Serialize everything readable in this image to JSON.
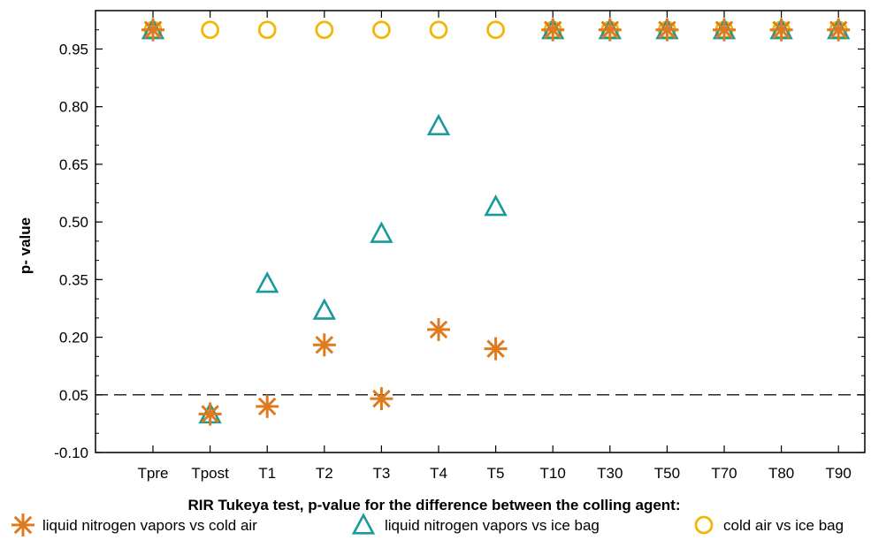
{
  "chart_data": {
    "type": "scatter",
    "title": "",
    "xlabel": "RIR Tukeya test, p-value for the difference between the colling agent:",
    "ylabel": "p- value",
    "categories": [
      "Tpre",
      "Tpost",
      "T1",
      "T2",
      "T3",
      "T4",
      "T5",
      "T10",
      "T30",
      "T50",
      "T70",
      "T80",
      "T90"
    ],
    "ylim": [
      -0.1,
      1.05
    ],
    "yticks": [
      -0.1,
      0.05,
      0.2,
      0.35,
      0.5,
      0.65,
      0.8,
      0.95
    ],
    "ytick_labels": [
      "-0.10",
      "0.05",
      "0.20",
      "0.35",
      "0.50",
      "0.65",
      "0.80",
      "0.95"
    ],
    "reference_line": {
      "y": 0.05,
      "style": "dashed"
    },
    "grid": false,
    "legend_position": "bottom",
    "series": [
      {
        "name": "liquid nitrogen vapors vs cold air",
        "marker": "asterisk",
        "color": "#E07A1F",
        "values": [
          1.0,
          0.0,
          0.02,
          0.18,
          0.04,
          0.22,
          0.17,
          1.0,
          1.0,
          1.0,
          1.0,
          1.0,
          1.0
        ]
      },
      {
        "name": "liquid nitrogen vapors vs ice bag",
        "marker": "triangle",
        "color": "#1A9A9A",
        "values": [
          1.0,
          0.0,
          0.34,
          0.27,
          0.47,
          0.75,
          0.54,
          1.0,
          1.0,
          1.0,
          1.0,
          1.0,
          1.0
        ]
      },
      {
        "name": "cold air vs ice bag",
        "marker": "circle",
        "color": "#F2B705",
        "values": [
          1.0,
          1.0,
          1.0,
          1.0,
          1.0,
          1.0,
          1.0,
          1.0,
          1.0,
          1.0,
          1.0,
          1.0,
          1.0
        ]
      }
    ]
  }
}
